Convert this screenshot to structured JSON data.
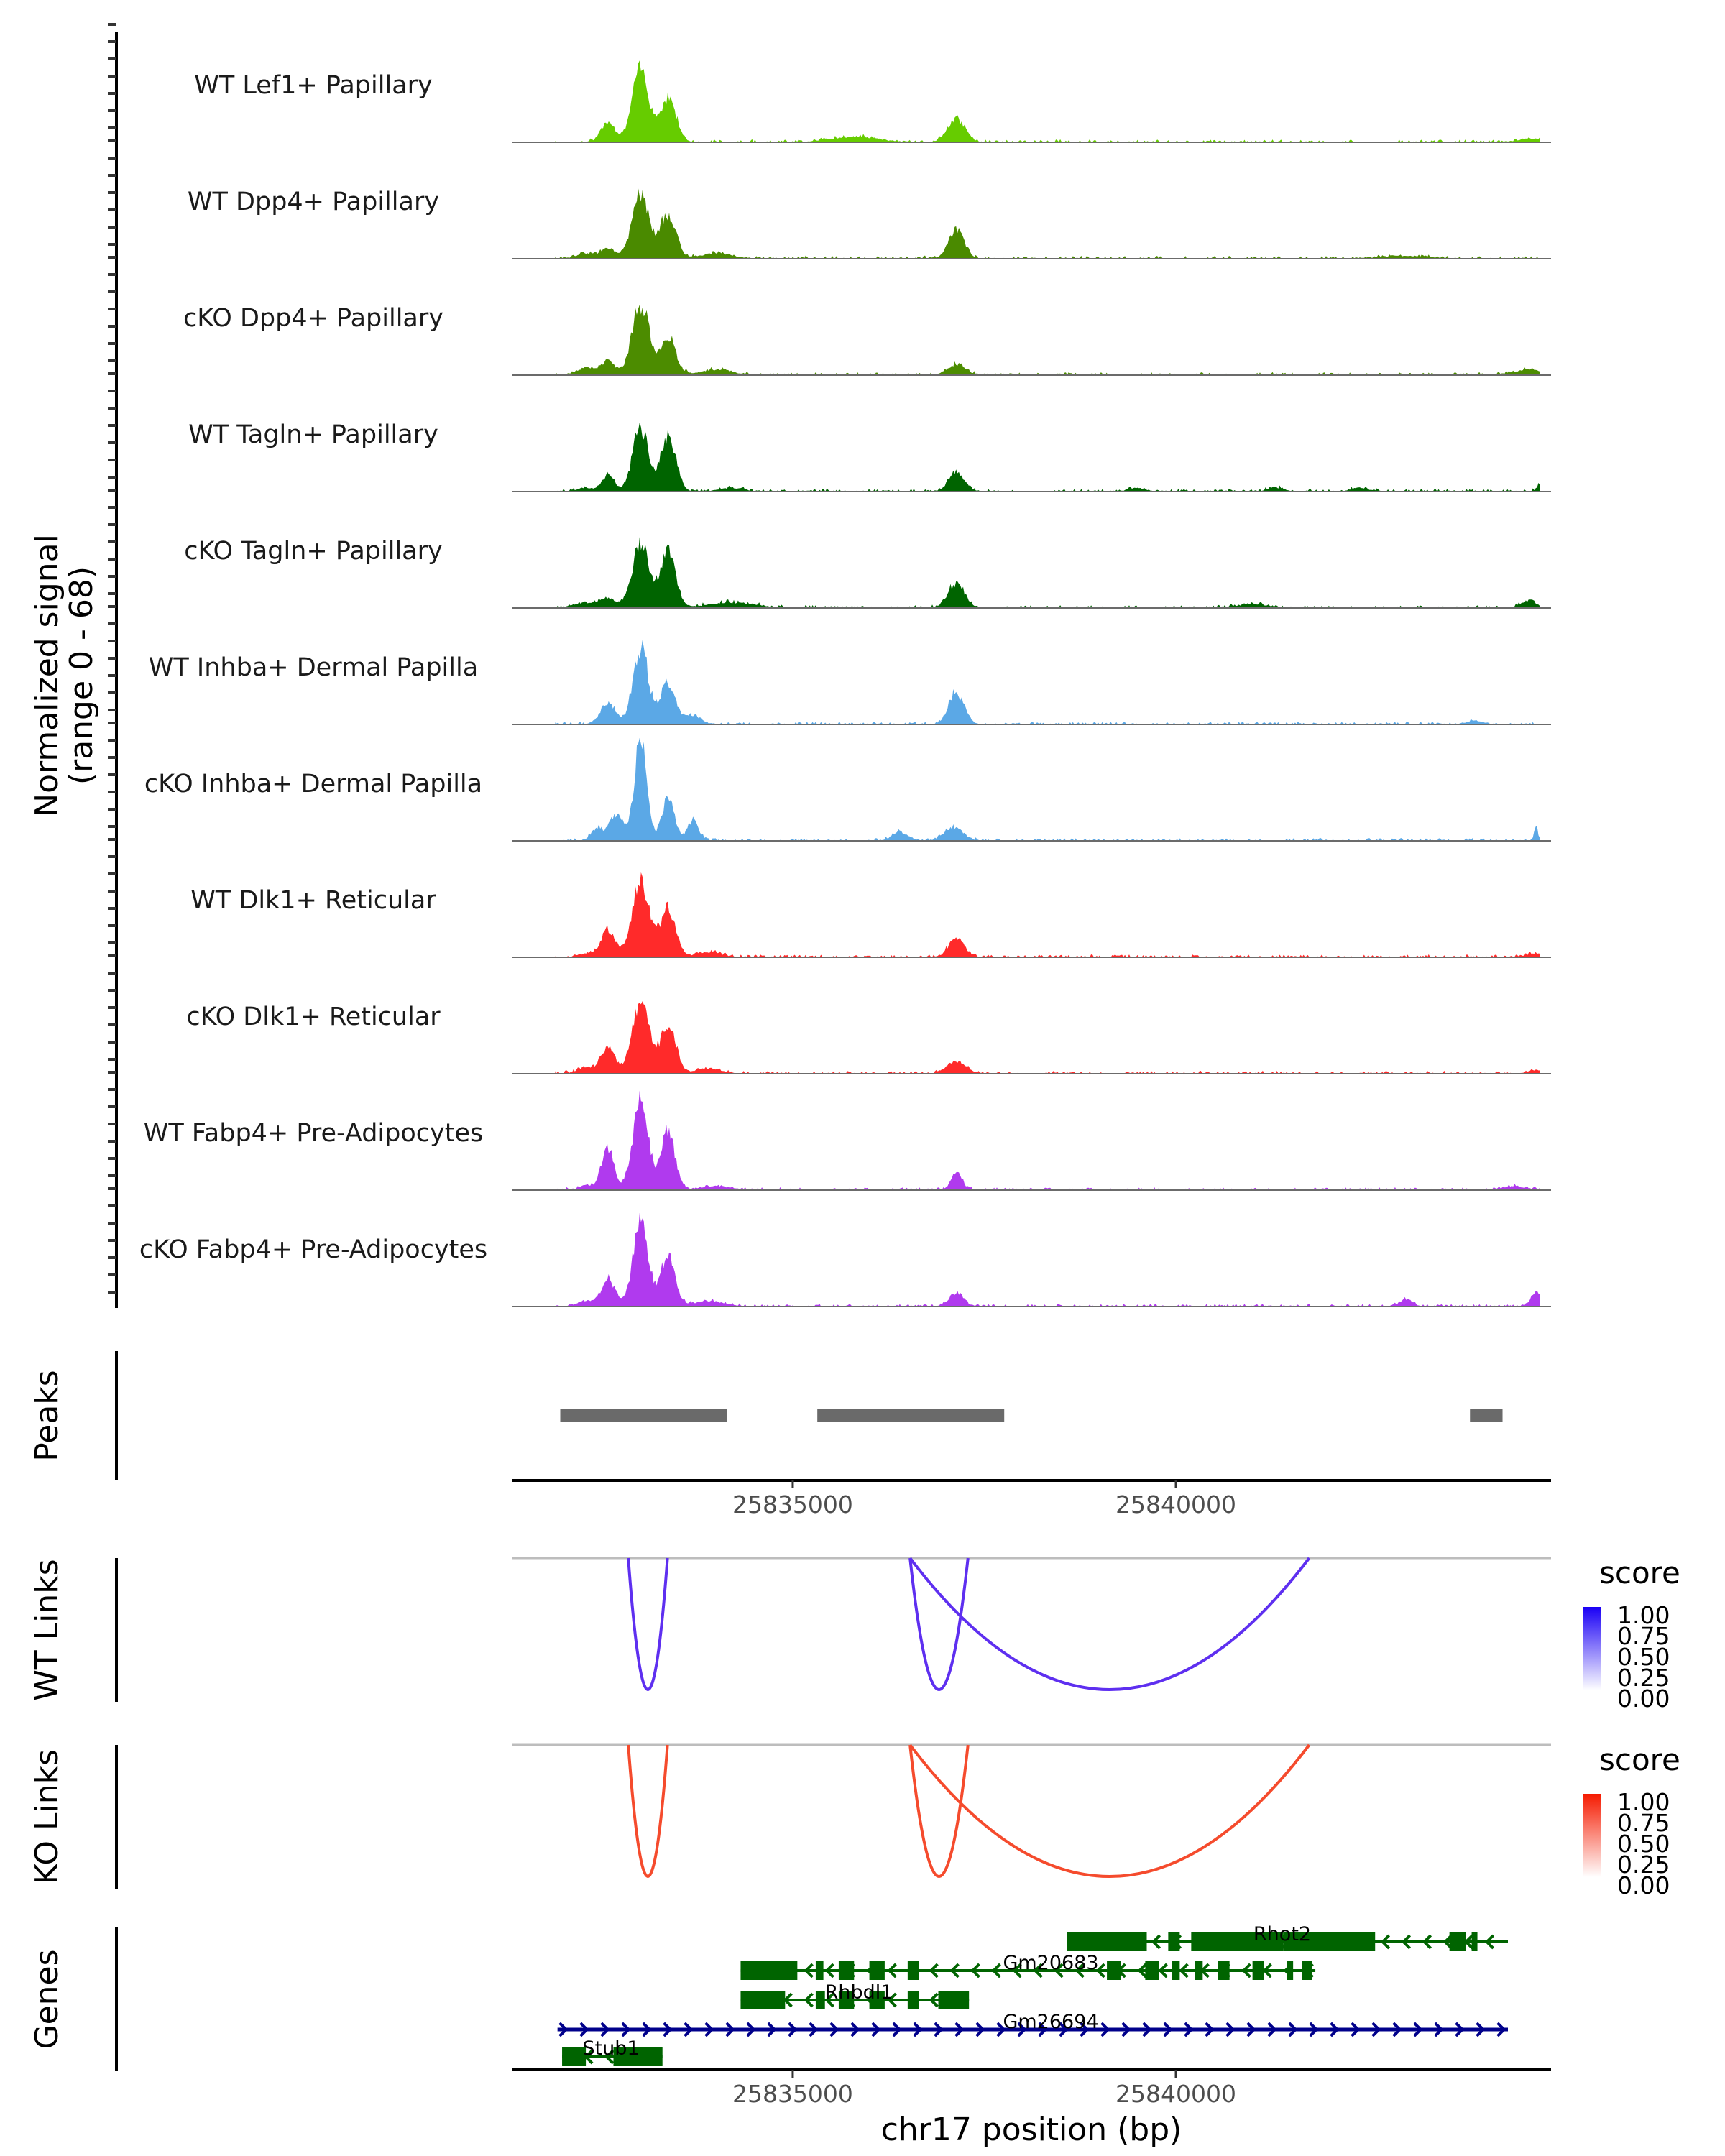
{
  "chart_data": {
    "type": "area",
    "title": "",
    "region": {
      "chromosome": "chr17",
      "start": 25831333,
      "end": 25844896
    },
    "xlabel": "chr17 position (bp)",
    "x_ticks": [
      25835000,
      25840000
    ],
    "x_tick_labels": [
      "25835000",
      "25840000"
    ],
    "coverage": {
      "ylabel_line1": "Normalized signal",
      "ylabel_line2": "(range 0 - 68)",
      "ylim": [
        0,
        68
      ],
      "tracks": [
        {
          "name": "WT Lef1+ Papillary",
          "color": "#66CC00",
          "peaks": [
            [
              25832590,
              12,
              90
            ],
            [
              25833015,
              42,
              110
            ],
            [
              25833374,
              26,
              100
            ],
            [
              25835800,
              3,
              300
            ],
            [
              25837136,
              13.5,
              110
            ],
            [
              25844700,
              2,
              200
            ]
          ]
        },
        {
          "name": "WT Dpp4+ Papillary",
          "color": "#4A8A00",
          "peaks": [
            [
              25832300,
              3,
              120
            ],
            [
              25832590,
              6,
              90
            ],
            [
              25833015,
              38,
              110
            ],
            [
              25833374,
              26,
              100
            ],
            [
              25834000,
              3,
              200
            ],
            [
              25837136,
              17,
              100
            ],
            [
              25843000,
              1.5,
              300
            ]
          ]
        },
        {
          "name": "cKO Dpp4+ Papillary",
          "color": "#4C8C00",
          "peaks": [
            [
              25832300,
              4,
              120
            ],
            [
              25832590,
              8,
              90
            ],
            [
              25833015,
              41,
              110
            ],
            [
              25833374,
              21,
              100
            ],
            [
              25834000,
              3,
              200
            ],
            [
              25837136,
              6,
              120
            ],
            [
              25844600,
              3,
              200
            ]
          ]
        },
        {
          "name": "WT Tagln+ Papillary",
          "color": "#006400",
          "peaks": [
            [
              25832300,
              2,
              100
            ],
            [
              25832590,
              9,
              80
            ],
            [
              25833015,
              38,
              100
            ],
            [
              25833374,
              31,
              100
            ],
            [
              25834200,
              2,
              150
            ],
            [
              25837136,
              11,
              100
            ],
            [
              25839500,
              2,
              100
            ],
            [
              25841300,
              2,
              100
            ],
            [
              25842400,
              2,
              100
            ],
            [
              25844750,
              4,
              40
            ]
          ]
        },
        {
          "name": "cKO Tagln+ Papillary",
          "color": "#006400",
          "peaks": [
            [
              25832300,
              3,
              150
            ],
            [
              25832590,
              5,
              100
            ],
            [
              25833015,
              38,
              110
            ],
            [
              25833374,
              32,
              100
            ],
            [
              25834200,
              3,
              300
            ],
            [
              25837136,
              14,
              110
            ],
            [
              25841000,
              2,
              200
            ],
            [
              25844600,
              4,
              100
            ]
          ]
        },
        {
          "name": "WT Inhba+ Dermal Papilla",
          "color": "#5BA8E6",
          "peaks": [
            [
              25832590,
              12,
              100
            ],
            [
              25833015,
              44,
              100
            ],
            [
              25833374,
              24,
              100
            ],
            [
              25833700,
              5,
              100
            ],
            [
              25837136,
              18,
              100
            ],
            [
              25843900,
              2,
              100
            ]
          ]
        },
        {
          "name": "cKO Inhba+ Dermal Papilla",
          "color": "#5BA8E6",
          "peaks": [
            [
              25832450,
              7,
              80
            ],
            [
              25832700,
              15,
              90
            ],
            [
              25833015,
              60,
              80
            ],
            [
              25833374,
              26,
              80
            ],
            [
              25833700,
              12,
              70
            ],
            [
              25836400,
              5,
              100
            ],
            [
              25837100,
              8,
              120
            ],
            [
              25844700,
              8,
              25
            ]
          ]
        },
        {
          "name": "WT Dlk1+ Reticular",
          "color": "#FF2A2A",
          "peaks": [
            [
              25832300,
              2,
              100
            ],
            [
              25832590,
              16,
              90
            ],
            [
              25833015,
              44,
              110
            ],
            [
              25833374,
              28,
              100
            ],
            [
              25833900,
              3,
              150
            ],
            [
              25837136,
              11,
              100
            ],
            [
              25844700,
              2,
              100
            ]
          ]
        },
        {
          "name": "cKO Dlk1+ Reticular",
          "color": "#FF2A2A",
          "peaks": [
            [
              25832300,
              4,
              100
            ],
            [
              25832590,
              15,
              90
            ],
            [
              25833015,
              43,
              110
            ],
            [
              25833374,
              28,
              100
            ],
            [
              25833900,
              3,
              150
            ],
            [
              25837136,
              7,
              120
            ],
            [
              25844700,
              2,
              100
            ]
          ]
        },
        {
          "name": "WT Fabp4+ Pre-Adipocytes",
          "color": "#B03AEE",
          "peaks": [
            [
              25832300,
              3,
              80
            ],
            [
              25832590,
              25,
              80
            ],
            [
              25833015,
              52,
              100
            ],
            [
              25833374,
              34,
              90
            ],
            [
              25834000,
              2,
              200
            ],
            [
              25837136,
              10,
              70
            ],
            [
              25844400,
              2,
              150
            ]
          ]
        },
        {
          "name": "cKO Fabp4+ Pre-Adipocytes",
          "color": "#B03AEE",
          "peaks": [
            [
              25832300,
              3,
              100
            ],
            [
              25832590,
              16,
              90
            ],
            [
              25833015,
              47,
              100
            ],
            [
              25833374,
              31,
              90
            ],
            [
              25833900,
              3,
              200
            ],
            [
              25837136,
              8,
              90
            ],
            [
              25843000,
              4,
              80
            ],
            [
              25844700,
              8,
              60
            ]
          ]
        }
      ]
    },
    "peaks_track": {
      "label": "Peaks",
      "color": "#6A6A6A",
      "intervals": [
        [
          25831966,
          25834140
        ],
        [
          25835321,
          25837760
        ],
        [
          25843838,
          25844263
        ]
      ]
    },
    "links": [
      {
        "label": "WT Links",
        "color": "#5E2FF0",
        "legend": {
          "title": "score",
          "ticks": [
            "1.00",
            "0.75",
            "0.50",
            "0.25",
            "0.00"
          ],
          "low_color": "#FFFFFF",
          "high_color": "#1A00F5"
        },
        "arcs": [
          {
            "start": 25832854,
            "end": 25833365,
            "score": 0.88
          },
          {
            "start": 25836531,
            "end": 25837287,
            "score": 0.88
          },
          {
            "start": 25836531,
            "end": 25841740,
            "score": 0.78
          }
        ]
      },
      {
        "label": "KO Links",
        "color": "#F54B2D",
        "legend": {
          "title": "score",
          "ticks": [
            "1.00",
            "0.75",
            "0.50",
            "0.25",
            "0.00"
          ],
          "low_color": "#FFFFFF",
          "high_color": "#F51A00"
        },
        "arcs": [
          {
            "start": 25832854,
            "end": 25833365,
            "score": 0.88
          },
          {
            "start": 25836531,
            "end": 25837287,
            "score": 0.88
          },
          {
            "start": 25836531,
            "end": 25841740,
            "score": 0.78
          }
        ]
      }
    ],
    "genes_track": {
      "label": "Genes",
      "genes": [
        {
          "name": "Rhot2",
          "strand": "-",
          "row": 0,
          "color": "#006400",
          "start": 25838580,
          "end": 25844900,
          "exons": [
            [
              25838580,
              25839620
            ],
            [
              25839900,
              25840050
            ],
            [
              25840200,
              25841400
            ],
            [
              25841400,
              25842600
            ],
            [
              25843570,
              25843780
            ],
            [
              25843860,
              25843920
            ]
          ]
        },
        {
          "name": "Gm20683",
          "strand": "-",
          "row": 1,
          "color": "#006400",
          "start": 25834320,
          "end": 25841820,
          "exons": [
            [
              25834320,
              25835060
            ],
            [
              25835300,
              25835400
            ],
            [
              25835600,
              25835800
            ],
            [
              25836000,
              25836200
            ],
            [
              25836500,
              25836650
            ],
            [
              25839100,
              25839280
            ],
            [
              25839600,
              25839780
            ],
            [
              25839950,
              25840050
            ],
            [
              25840250,
              25840350
            ],
            [
              25840550,
              25840700
            ],
            [
              25841000,
              25841150
            ],
            [
              25841450,
              25841530
            ],
            [
              25841650,
              25841780
            ]
          ]
        },
        {
          "name": "Rhbdl1",
          "strand": "-",
          "row": 2,
          "color": "#006400",
          "start": 25834320,
          "end": 25837300,
          "exons": [
            [
              25834320,
              25834900
            ],
            [
              25835300,
              25835420
            ],
            [
              25835600,
              25835800
            ],
            [
              25836000,
              25836200
            ],
            [
              25836500,
              25836650
            ],
            [
              25836900,
              25837300
            ]
          ]
        },
        {
          "name": "Gm26694",
          "strand": "+",
          "row": 3,
          "color": "#00008B",
          "start": 25831930,
          "end": 25844900,
          "exons": []
        },
        {
          "name": "Stub1",
          "strand": "-",
          "row": 4,
          "color": "#006400",
          "start": 25831990,
          "end": 25833300,
          "exons": [
            [
              25831990,
              25832300
            ],
            [
              25832660,
              25833300
            ]
          ]
        }
      ]
    }
  }
}
